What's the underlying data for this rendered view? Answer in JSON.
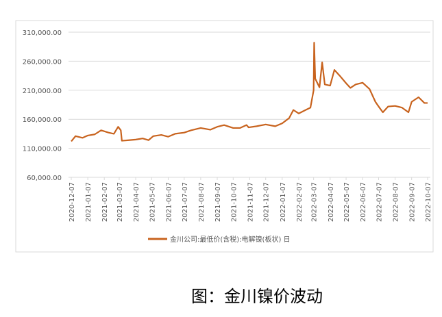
{
  "chart_data": {
    "type": "line",
    "x": [
      "2020-12-07",
      "2020-12-15",
      "2020-12-28",
      "2021-01-07",
      "2021-01-20",
      "2021-02-01",
      "2021-02-15",
      "2021-02-25",
      "2021-03-05",
      "2021-03-10",
      "2021-03-12",
      "2021-03-25",
      "2021-04-07",
      "2021-04-20",
      "2021-05-01",
      "2021-05-10",
      "2021-05-25",
      "2021-06-07",
      "2021-06-20",
      "2021-07-07",
      "2021-07-20",
      "2021-08-07",
      "2021-08-25",
      "2021-09-07",
      "2021-09-20",
      "2021-10-07",
      "2021-10-20",
      "2021-11-01",
      "2021-11-05",
      "2021-11-20",
      "2021-12-07",
      "2021-12-25",
      "2022-01-07",
      "2022-01-20",
      "2022-01-28",
      "2022-02-07",
      "2022-02-20",
      "2022-03-01",
      "2022-03-07",
      "2022-03-08",
      "2022-03-10",
      "2022-03-18",
      "2022-03-23",
      "2022-03-28",
      "2022-04-07",
      "2022-04-15",
      "2022-04-25",
      "2022-05-07",
      "2022-05-15",
      "2022-05-25",
      "2022-06-07",
      "2022-06-20",
      "2022-07-01",
      "2022-07-07",
      "2022-07-15",
      "2022-07-25",
      "2022-08-07",
      "2022-08-20",
      "2022-09-01",
      "2022-09-07",
      "2022-09-20",
      "2022-10-01",
      "2022-10-07"
    ],
    "series": [
      {
        "name": "金川公司:最低价(含税):电解镍(板状) 日",
        "color": "#c8631e",
        "values": [
          122000,
          131000,
          128000,
          132000,
          134000,
          141000,
          137000,
          135000,
          147000,
          141000,
          123000,
          124000,
          125000,
          127000,
          124000,
          131000,
          133000,
          130000,
          135000,
          137000,
          141000,
          145000,
          142000,
          147000,
          150000,
          145000,
          145000,
          150000,
          146000,
          148000,
          151000,
          148000,
          153000,
          162000,
          176000,
          170000,
          176000,
          180000,
          210000,
          292000,
          230000,
          215000,
          258000,
          220000,
          218000,
          245000,
          235000,
          222000,
          214000,
          220000,
          223000,
          212000,
          190000,
          182000,
          172000,
          182000,
          183000,
          180000,
          172000,
          190000,
          198000,
          188000,
          188000
        ]
      }
    ],
    "xlim": [
      "2020-12-07",
      "2022-10-07"
    ],
    "xticks": [
      "2020-12-07",
      "2021-01-07",
      "2021-02-07",
      "2021-03-07",
      "2021-04-07",
      "2021-05-07",
      "2021-06-07",
      "2021-07-07",
      "2021-08-07",
      "2021-09-07",
      "2021-10-07",
      "2021-11-07",
      "2021-12-07",
      "2022-01-07",
      "2022-02-07",
      "2022-03-07",
      "2022-04-07",
      "2022-05-07",
      "2022-06-07",
      "2022-07-07",
      "2022-08-07",
      "2022-09-07",
      "2022-10-07"
    ],
    "ylim": [
      60000,
      310000
    ],
    "yticks": [
      {
        "value": 60000,
        "label": "60,000.00"
      },
      {
        "value": 110000,
        "label": "110,000.00"
      },
      {
        "value": 160000,
        "label": "160,000.00"
      },
      {
        "value": 210000,
        "label": "210,000.00"
      },
      {
        "value": 260000,
        "label": "260,000.00"
      },
      {
        "value": 310000,
        "label": "310,000.00"
      }
    ],
    "grid": true
  },
  "caption": "图：金川镍价波动"
}
